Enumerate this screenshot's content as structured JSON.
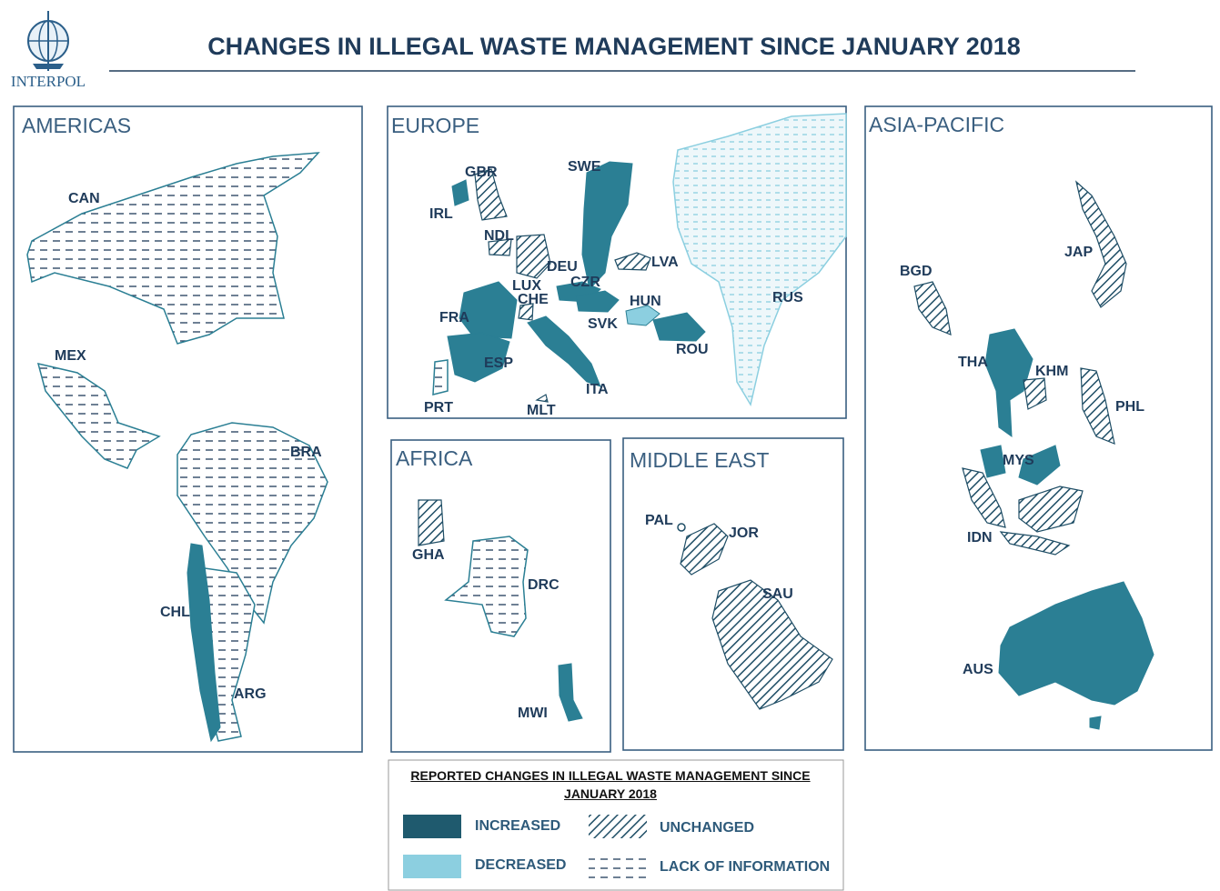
{
  "header": {
    "logo_text": "INTERPOL",
    "title": "CHANGES IN ILLEGAL WASTE MANAGEMENT SINCE JANUARY 2018"
  },
  "regions": [
    {
      "title": "AMERICAS",
      "countries": [
        "CAN",
        "MEX",
        "BRA",
        "CHL",
        "ARG"
      ]
    },
    {
      "title": "EUROPE",
      "countries": [
        "GBR",
        "IRL",
        "NDL",
        "DEU",
        "LUX",
        "CHE",
        "FRA",
        "ESP",
        "PRT",
        "CZR",
        "SVK",
        "HUN",
        "SWE",
        "LVA",
        "ROU",
        "ITA",
        "MLT",
        "RUS"
      ]
    },
    {
      "title": "AFRICA",
      "countries": [
        "GHA",
        "DRC",
        "MWI"
      ]
    },
    {
      "title": "MIDDLE EAST",
      "countries": [
        "PAL",
        "JOR",
        "SAU"
      ]
    },
    {
      "title": "ASIA-PACIFIC",
      "countries": [
        "JAP",
        "BGD",
        "THA",
        "KHM",
        "PHL",
        "MYS",
        "IDN",
        "AUS"
      ]
    }
  ],
  "legend": {
    "title": "REPORTED CHANGES IN ILLEGAL WASTE MANAGEMENT SINCE JANUARY 2018",
    "items": [
      "INCREASED",
      "DECREASED",
      "UNCHANGED",
      "LACK OF INFORMATION"
    ]
  }
}
